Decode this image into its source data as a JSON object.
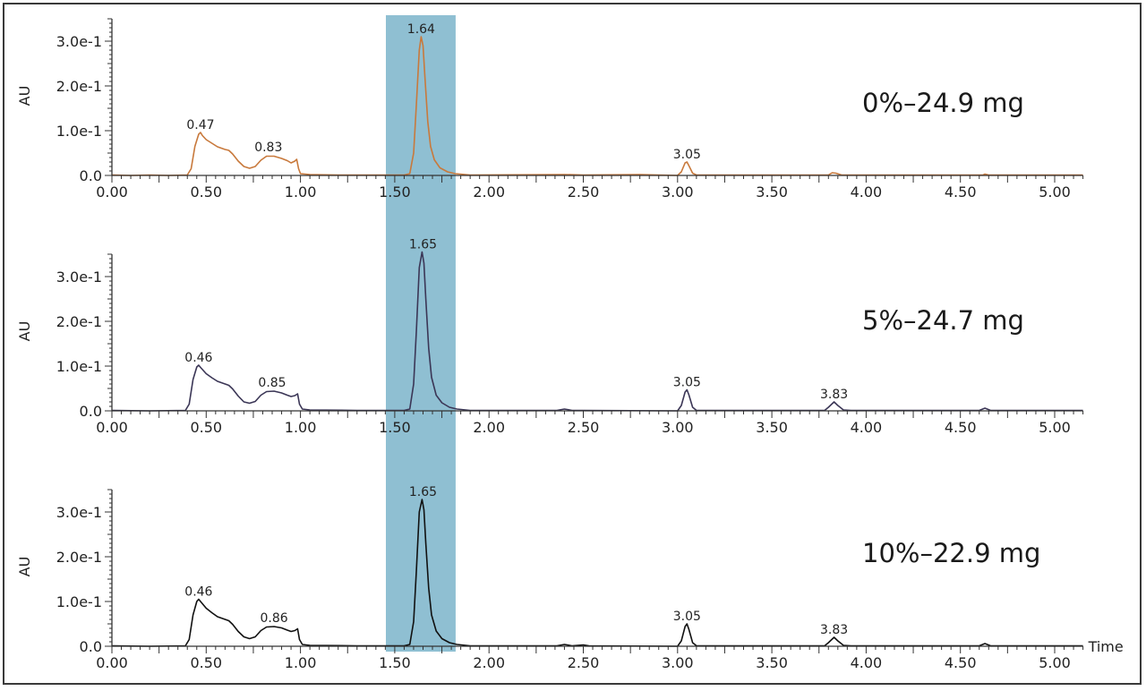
{
  "figure": {
    "x_axis_title": "Time",
    "y_axis_title": "AU",
    "highlight": {
      "x_start": 1.453,
      "x_end": 1.823,
      "color": "#8fbfd2"
    }
  },
  "chart_data": [
    {
      "type": "line",
      "title": "0%–24.9 mg",
      "xlabel": "",
      "ylabel": "AU",
      "xlim": [
        0,
        5.15
      ],
      "ylim": [
        0,
        0.35
      ],
      "grid": false,
      "x_ticks": [
        0,
        0.5,
        1.0,
        1.5,
        2.0,
        2.5,
        3.0,
        3.5,
        4.0,
        4.5,
        5.0
      ],
      "x_tick_labels": [
        "0.00",
        "0.50",
        "1.00",
        "1.50",
        "2.00",
        "2.50",
        "3.00",
        "3.50",
        "4.00",
        "4.50",
        "5.00"
      ],
      "y_ticks": [
        0,
        0.1,
        0.2,
        0.3
      ],
      "y_tick_labels": [
        "0.0",
        "1.0e-1",
        "2.0e-1",
        "3.0e-1"
      ],
      "peak_labels": [
        {
          "t": 0.47,
          "au": 0.096,
          "label": "0.47"
        },
        {
          "t": 0.83,
          "au": 0.046,
          "label": "0.83"
        },
        {
          "t": 1.64,
          "au": 0.31,
          "label": "1.64"
        },
        {
          "t": 3.05,
          "au": 0.03,
          "label": "3.05"
        }
      ],
      "series": [
        {
          "name": "0%–24.9 mg",
          "color": "#c8793c",
          "points": [
            [
              0,
              0.001
            ],
            [
              0.1,
              0.0
            ],
            [
              0.2,
              0.001
            ],
            [
              0.3,
              0.0
            ],
            [
              0.4,
              0.001
            ],
            [
              0.42,
              0.015
            ],
            [
              0.44,
              0.065
            ],
            [
              0.46,
              0.092
            ],
            [
              0.47,
              0.096
            ],
            [
              0.48,
              0.089
            ],
            [
              0.5,
              0.08
            ],
            [
              0.53,
              0.072
            ],
            [
              0.56,
              0.064
            ],
            [
              0.6,
              0.058
            ],
            [
              0.62,
              0.056
            ],
            [
              0.64,
              0.048
            ],
            [
              0.67,
              0.032
            ],
            [
              0.7,
              0.02
            ],
            [
              0.73,
              0.016
            ],
            [
              0.76,
              0.02
            ],
            [
              0.79,
              0.034
            ],
            [
              0.82,
              0.043
            ],
            [
              0.86,
              0.043
            ],
            [
              0.9,
              0.038
            ],
            [
              0.93,
              0.033
            ],
            [
              0.95,
              0.028
            ],
            [
              0.97,
              0.032
            ],
            [
              0.98,
              0.036
            ],
            [
              0.99,
              0.015
            ],
            [
              1.0,
              0.004
            ],
            [
              1.05,
              0.002
            ],
            [
              1.2,
              0.001
            ],
            [
              1.4,
              0.001
            ],
            [
              1.55,
              0.001
            ],
            [
              1.58,
              0.004
            ],
            [
              1.6,
              0.05
            ],
            [
              1.615,
              0.16
            ],
            [
              1.63,
              0.28
            ],
            [
              1.64,
              0.31
            ],
            [
              1.65,
              0.29
            ],
            [
              1.66,
              0.22
            ],
            [
              1.675,
              0.12
            ],
            [
              1.69,
              0.065
            ],
            [
              1.71,
              0.035
            ],
            [
              1.74,
              0.017
            ],
            [
              1.78,
              0.008
            ],
            [
              1.82,
              0.004
            ],
            [
              1.9,
              0.001
            ],
            [
              2.4,
              0.002
            ],
            [
              2.5,
              0.001
            ],
            [
              2.8,
              0.002
            ],
            [
              3.0,
              0.0
            ],
            [
              3.02,
              0.008
            ],
            [
              3.04,
              0.028
            ],
            [
              3.05,
              0.03
            ],
            [
              3.06,
              0.022
            ],
            [
              3.08,
              0.005
            ],
            [
              3.1,
              0.001
            ],
            [
              3.8,
              0.001
            ],
            [
              3.82,
              0.006
            ],
            [
              3.84,
              0.005
            ],
            [
              3.87,
              0.001
            ],
            [
              4.62,
              0.001
            ],
            [
              4.63,
              0.003
            ],
            [
              4.65,
              0.001
            ],
            [
              5.15,
              0.001
            ]
          ]
        }
      ]
    },
    {
      "type": "line",
      "title": "5%–24.7 mg",
      "xlabel": "",
      "ylabel": "AU",
      "xlim": [
        0,
        5.15
      ],
      "ylim": [
        0,
        0.35
      ],
      "grid": false,
      "x_ticks": [
        0,
        0.5,
        1.0,
        1.5,
        2.0,
        2.5,
        3.0,
        3.5,
        4.0,
        4.5,
        5.0
      ],
      "x_tick_labels": [
        "0.00",
        "0.50",
        "1.00",
        "1.50",
        "2.00",
        "2.50",
        "3.00",
        "3.50",
        "4.00",
        "4.50",
        "5.00"
      ],
      "y_ticks": [
        0,
        0.1,
        0.2,
        0.3
      ],
      "y_tick_labels": [
        "0.0",
        "1.0e-1",
        "2.0e-1",
        "3.0e-1"
      ],
      "peak_labels": [
        {
          "t": 0.46,
          "au": 0.102,
          "label": "0.46"
        },
        {
          "t": 0.85,
          "au": 0.046,
          "label": "0.85"
        },
        {
          "t": 1.65,
          "au": 0.355,
          "label": "1.65"
        },
        {
          "t": 3.05,
          "au": 0.047,
          "label": "3.05"
        },
        {
          "t": 3.83,
          "au": 0.02,
          "label": "3.83"
        }
      ],
      "series": [
        {
          "name": "5%–24.7 mg",
          "color": "#3b3656",
          "points": [
            [
              0,
              0.001
            ],
            [
              0.2,
              0.0
            ],
            [
              0.39,
              0.001
            ],
            [
              0.41,
              0.015
            ],
            [
              0.43,
              0.07
            ],
            [
              0.45,
              0.098
            ],
            [
              0.46,
              0.102
            ],
            [
              0.47,
              0.097
            ],
            [
              0.5,
              0.083
            ],
            [
              0.53,
              0.074
            ],
            [
              0.56,
              0.066
            ],
            [
              0.6,
              0.06
            ],
            [
              0.62,
              0.057
            ],
            [
              0.64,
              0.049
            ],
            [
              0.67,
              0.033
            ],
            [
              0.7,
              0.02
            ],
            [
              0.73,
              0.017
            ],
            [
              0.76,
              0.021
            ],
            [
              0.79,
              0.035
            ],
            [
              0.82,
              0.043
            ],
            [
              0.86,
              0.044
            ],
            [
              0.9,
              0.04
            ],
            [
              0.93,
              0.035
            ],
            [
              0.95,
              0.032
            ],
            [
              0.97,
              0.034
            ],
            [
              0.985,
              0.038
            ],
            [
              0.995,
              0.015
            ],
            [
              1.01,
              0.004
            ],
            [
              1.05,
              0.002
            ],
            [
              1.3,
              0.001
            ],
            [
              1.55,
              0.001
            ],
            [
              1.58,
              0.004
            ],
            [
              1.6,
              0.06
            ],
            [
              1.615,
              0.18
            ],
            [
              1.63,
              0.32
            ],
            [
              1.645,
              0.355
            ],
            [
              1.655,
              0.33
            ],
            [
              1.665,
              0.25
            ],
            [
              1.68,
              0.14
            ],
            [
              1.695,
              0.075
            ],
            [
              1.72,
              0.035
            ],
            [
              1.75,
              0.018
            ],
            [
              1.79,
              0.008
            ],
            [
              1.83,
              0.004
            ],
            [
              1.9,
              0.001
            ],
            [
              2.36,
              0.001
            ],
            [
              2.4,
              0.004
            ],
            [
              2.44,
              0.001
            ],
            [
              2.5,
              0.001
            ],
            [
              3.0,
              0.0
            ],
            [
              3.02,
              0.012
            ],
            [
              3.04,
              0.042
            ],
            [
              3.05,
              0.047
            ],
            [
              3.06,
              0.036
            ],
            [
              3.08,
              0.008
            ],
            [
              3.1,
              0.001
            ],
            [
              3.78,
              0.001
            ],
            [
              3.8,
              0.008
            ],
            [
              3.83,
              0.02
            ],
            [
              3.85,
              0.012
            ],
            [
              3.88,
              0.002
            ],
            [
              3.92,
              0.001
            ],
            [
              4.6,
              0.001
            ],
            [
              4.63,
              0.006
            ],
            [
              4.66,
              0.001
            ],
            [
              5.15,
              0.001
            ]
          ]
        }
      ]
    },
    {
      "type": "line",
      "title": "10%–22.9 mg",
      "xlabel": "Time",
      "ylabel": "AU",
      "xlim": [
        0,
        5.15
      ],
      "ylim": [
        0,
        0.35
      ],
      "grid": false,
      "x_ticks": [
        0,
        0.5,
        1.0,
        1.5,
        2.0,
        2.5,
        3.0,
        3.5,
        4.0,
        4.5,
        5.0
      ],
      "x_tick_labels": [
        "0.00",
        "0.50",
        "1.00",
        "1.50",
        "2.00",
        "2.50",
        "3.00",
        "3.50",
        "4.00",
        "4.50",
        "5.00"
      ],
      "y_ticks": [
        0,
        0.1,
        0.2,
        0.3
      ],
      "y_tick_labels": [
        "0.0",
        "1.0e-1",
        "2.0e-1",
        "3.0e-1"
      ],
      "peak_labels": [
        {
          "t": 0.46,
          "au": 0.105,
          "label": "0.46"
        },
        {
          "t": 0.86,
          "au": 0.046,
          "label": "0.86"
        },
        {
          "t": 1.65,
          "au": 0.328,
          "label": "1.65"
        },
        {
          "t": 3.05,
          "au": 0.05,
          "label": "3.05"
        },
        {
          "t": 3.83,
          "au": 0.02,
          "label": "3.83"
        }
      ],
      "series": [
        {
          "name": "10%–22.9 mg",
          "color": "#111111",
          "points": [
            [
              0,
              0.001
            ],
            [
              0.2,
              0.0
            ],
            [
              0.39,
              0.001
            ],
            [
              0.41,
              0.015
            ],
            [
              0.43,
              0.07
            ],
            [
              0.45,
              0.1
            ],
            [
              0.46,
              0.105
            ],
            [
              0.47,
              0.1
            ],
            [
              0.5,
              0.085
            ],
            [
              0.53,
              0.075
            ],
            [
              0.56,
              0.066
            ],
            [
              0.6,
              0.06
            ],
            [
              0.62,
              0.057
            ],
            [
              0.64,
              0.049
            ],
            [
              0.67,
              0.033
            ],
            [
              0.7,
              0.021
            ],
            [
              0.73,
              0.017
            ],
            [
              0.76,
              0.021
            ],
            [
              0.79,
              0.035
            ],
            [
              0.82,
              0.043
            ],
            [
              0.86,
              0.044
            ],
            [
              0.9,
              0.041
            ],
            [
              0.93,
              0.036
            ],
            [
              0.95,
              0.033
            ],
            [
              0.97,
              0.035
            ],
            [
              0.985,
              0.039
            ],
            [
              0.995,
              0.015
            ],
            [
              1.01,
              0.004
            ],
            [
              1.05,
              0.002
            ],
            [
              1.3,
              0.001
            ],
            [
              1.55,
              0.001
            ],
            [
              1.58,
              0.004
            ],
            [
              1.6,
              0.055
            ],
            [
              1.615,
              0.17
            ],
            [
              1.63,
              0.3
            ],
            [
              1.645,
              0.328
            ],
            [
              1.655,
              0.305
            ],
            [
              1.665,
              0.23
            ],
            [
              1.68,
              0.13
            ],
            [
              1.695,
              0.07
            ],
            [
              1.72,
              0.034
            ],
            [
              1.75,
              0.017
            ],
            [
              1.79,
              0.008
            ],
            [
              1.83,
              0.004
            ],
            [
              1.9,
              0.001
            ],
            [
              2.36,
              0.001
            ],
            [
              2.4,
              0.004
            ],
            [
              2.44,
              0.001
            ],
            [
              2.5,
              0.003
            ],
            [
              2.53,
              0.001
            ],
            [
              3.0,
              0.0
            ],
            [
              3.02,
              0.012
            ],
            [
              3.04,
              0.044
            ],
            [
              3.05,
              0.05
            ],
            [
              3.06,
              0.038
            ],
            [
              3.08,
              0.008
            ],
            [
              3.1,
              0.001
            ],
            [
              3.78,
              0.001
            ],
            [
              3.8,
              0.008
            ],
            [
              3.83,
              0.02
            ],
            [
              3.85,
              0.012
            ],
            [
              3.88,
              0.002
            ],
            [
              3.92,
              0.001
            ],
            [
              4.6,
              0.001
            ],
            [
              4.63,
              0.006
            ],
            [
              4.66,
              0.001
            ],
            [
              5.15,
              0.001
            ]
          ]
        }
      ]
    }
  ]
}
